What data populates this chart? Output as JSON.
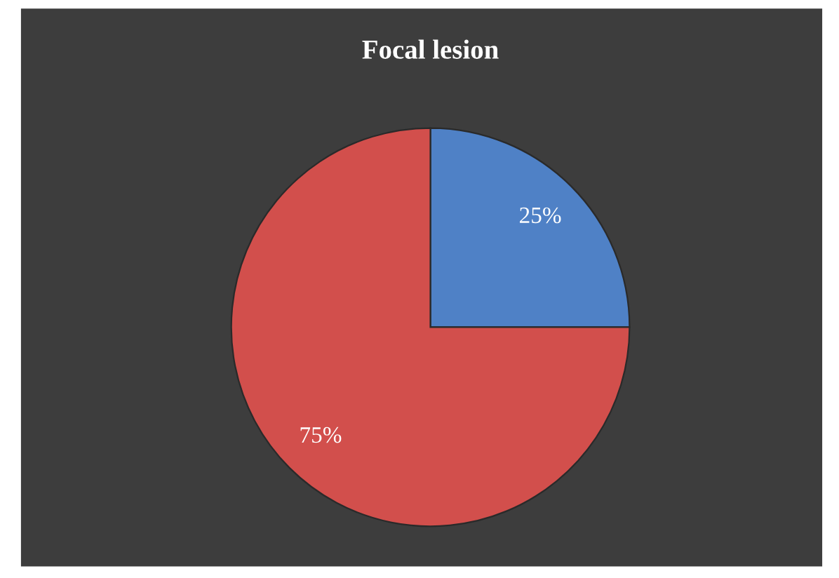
{
  "chart_data": {
    "type": "pie",
    "title": "Focal lesion",
    "categories": [
      null,
      null
    ],
    "values": [
      25,
      75
    ],
    "colors": [
      "#4f81c6",
      "#d24f4c"
    ],
    "value_labels": [
      "25%",
      "75%"
    ]
  }
}
